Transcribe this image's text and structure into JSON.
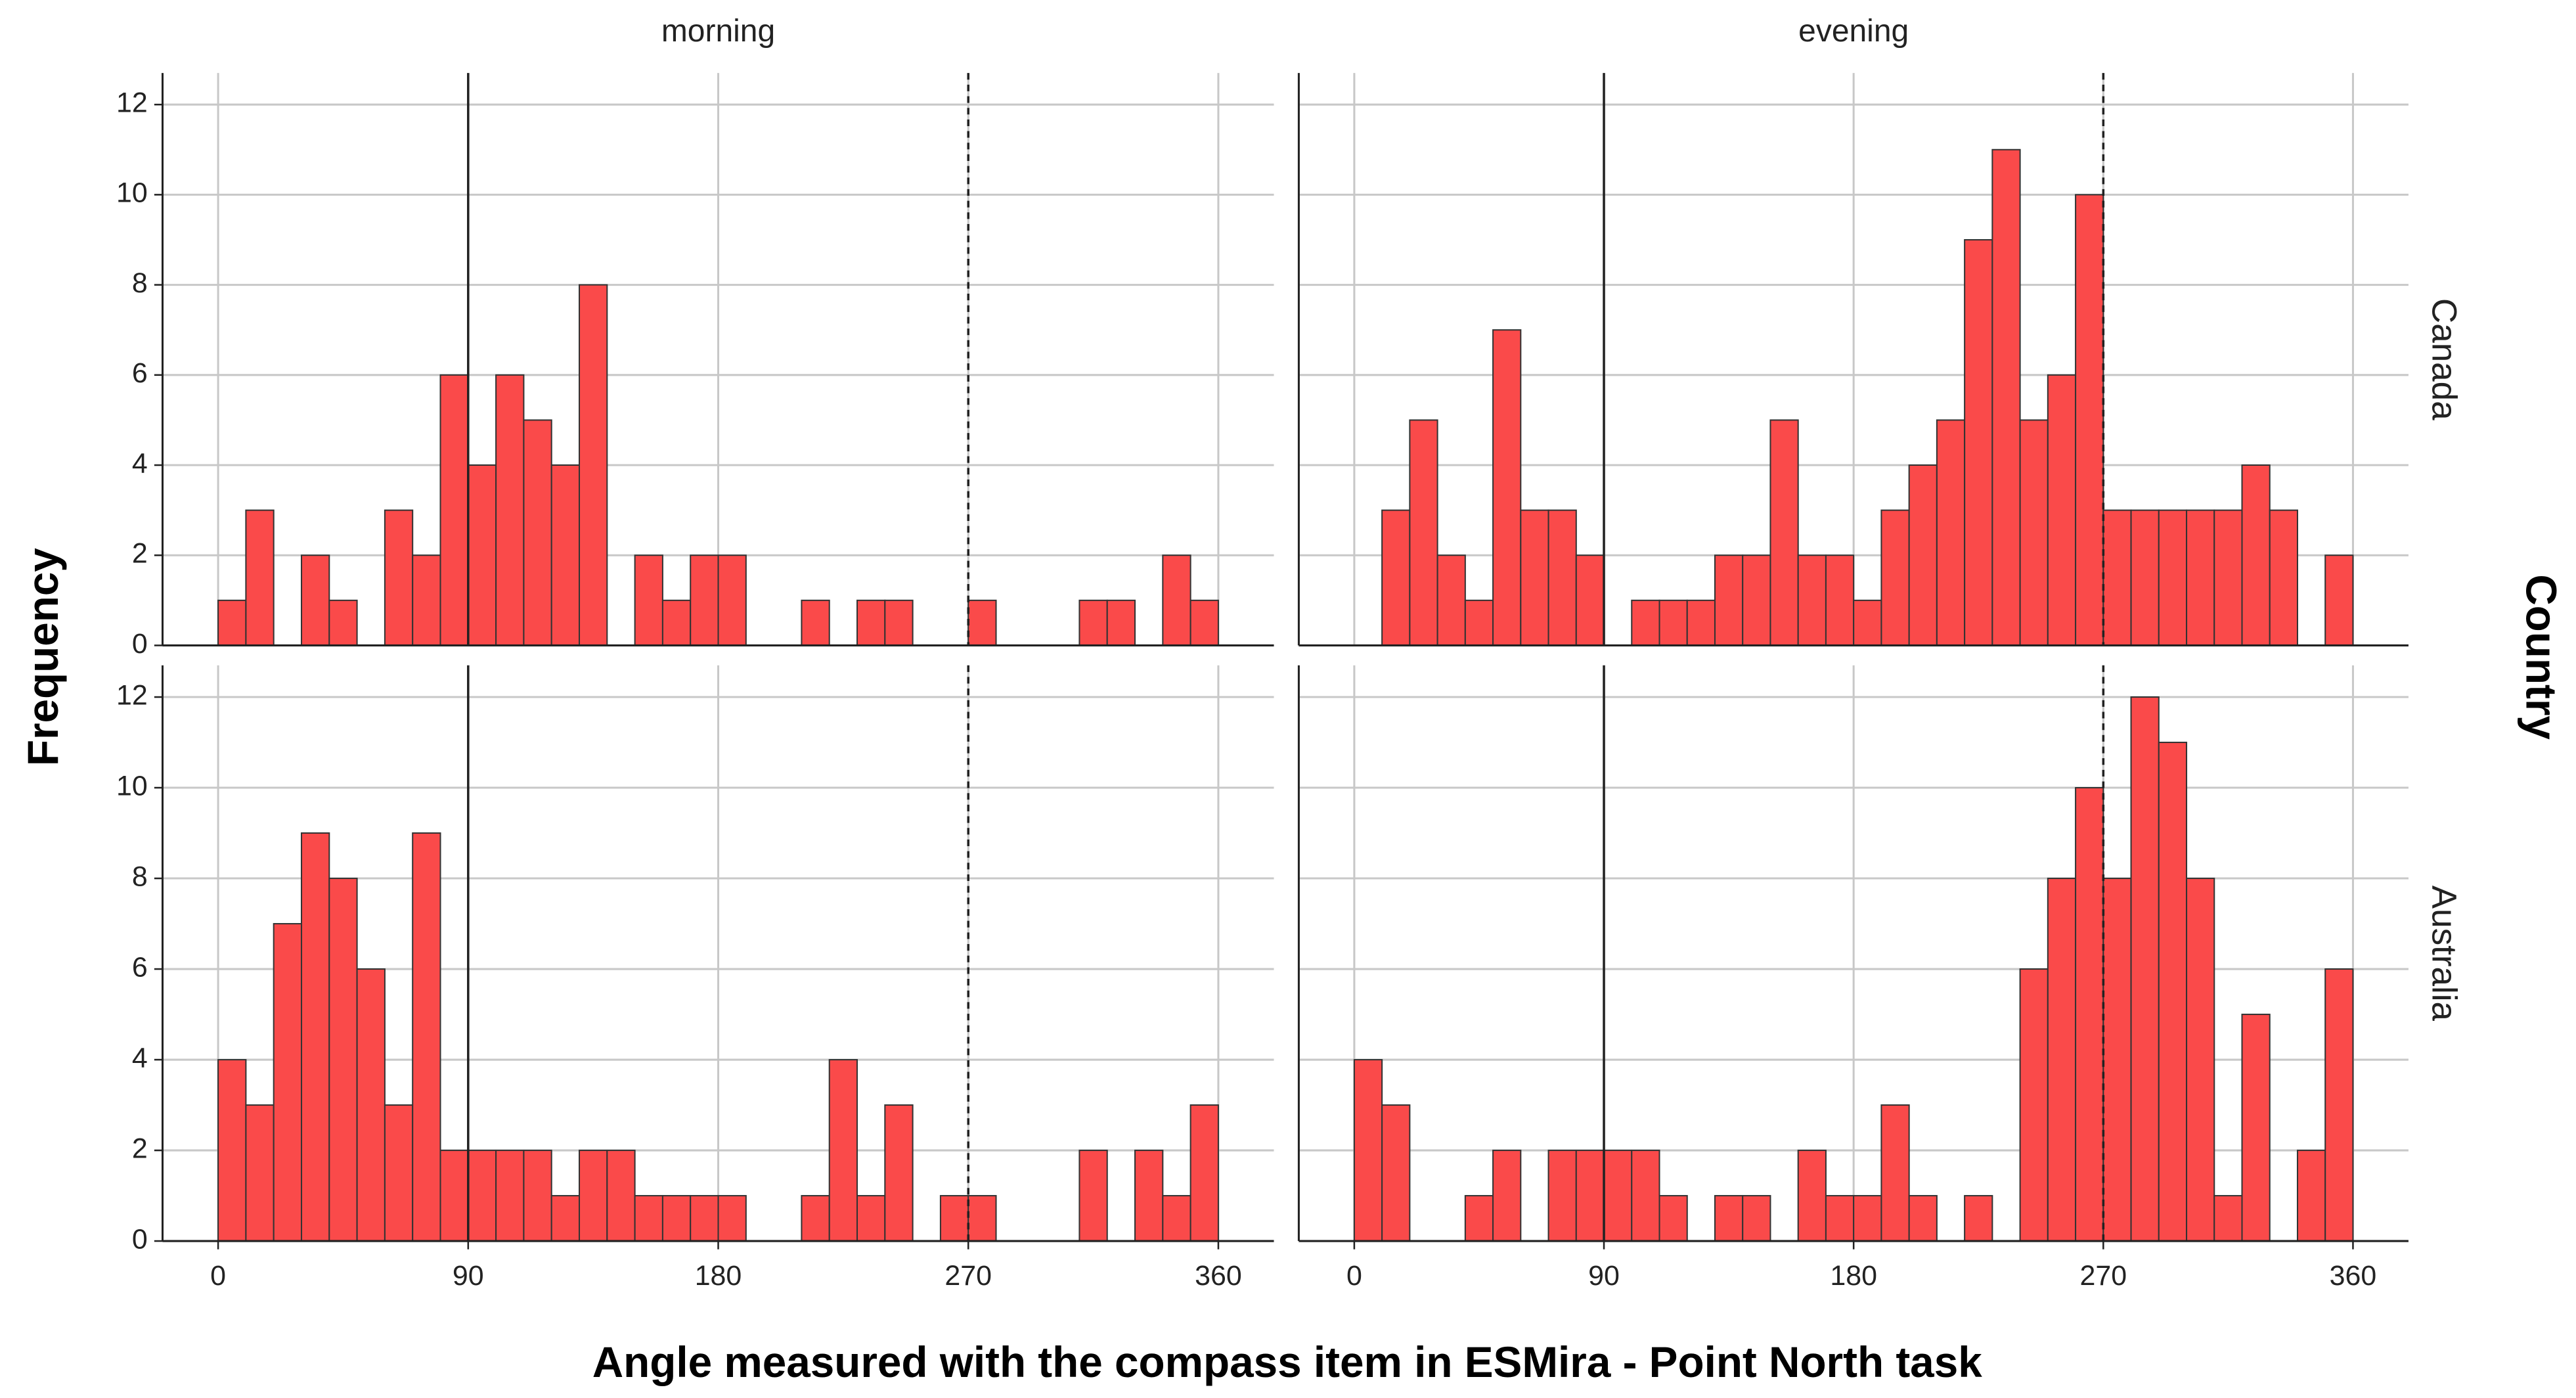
{
  "chart_data": {
    "type": "histogram",
    "xlabel": "Angle measured with the compass item in ESMira - Point North task",
    "ylabel": "Frequency",
    "row_facet_label": "Country",
    "columns": [
      "morning",
      "evening"
    ],
    "rows": [
      "Canada",
      "Australia"
    ],
    "bins": [
      0,
      10,
      20,
      30,
      40,
      50,
      60,
      70,
      80,
      90,
      100,
      110,
      120,
      130,
      140,
      150,
      160,
      170,
      180,
      190,
      200,
      210,
      220,
      230,
      240,
      250,
      260,
      270,
      280,
      290,
      300,
      310,
      320,
      330,
      340,
      350,
      360
    ],
    "panels": [
      [
        {
          "values": [
            1,
            3,
            0,
            2,
            1,
            0,
            3,
            2,
            6,
            4,
            6,
            5,
            4,
            8,
            0,
            2,
            1,
            2,
            2,
            0,
            0,
            1,
            0,
            1,
            1,
            0,
            0,
            1,
            0,
            0,
            0,
            1,
            1,
            0,
            2,
            1
          ]
        },
        {
          "values": [
            0,
            3,
            5,
            2,
            1,
            7,
            3,
            3,
            2,
            0,
            1,
            1,
            1,
            2,
            2,
            5,
            2,
            2,
            1,
            3,
            4,
            5,
            9,
            11,
            5,
            6,
            10,
            3,
            3,
            3,
            3,
            3,
            4,
            3,
            0,
            2
          ]
        }
      ],
      [
        {
          "values": [
            4,
            3,
            7,
            9,
            8,
            6,
            3,
            9,
            2,
            2,
            2,
            2,
            1,
            2,
            2,
            1,
            1,
            1,
            1,
            0,
            0,
            1,
            4,
            1,
            3,
            0,
            1,
            1,
            0,
            0,
            0,
            2,
            0,
            2,
            1,
            3
          ]
        },
        {
          "values": [
            4,
            3,
            0,
            0,
            1,
            2,
            0,
            2,
            2,
            2,
            2,
            1,
            0,
            1,
            1,
            0,
            2,
            1,
            1,
            3,
            1,
            0,
            1,
            0,
            6,
            8,
            10,
            8,
            12,
            11,
            8,
            1,
            5,
            0,
            2,
            6
          ]
        }
      ]
    ],
    "color": "#fa4a4a",
    "edge_color": "#333333",
    "reference_lines": [
      {
        "value": 90,
        "style": "solid"
      },
      {
        "value": 270,
        "style": "dashed"
      }
    ],
    "xlim": [
      -20,
      380
    ],
    "xticks": [
      0,
      90,
      180,
      270,
      360
    ],
    "ylim": [
      0,
      12.7
    ],
    "yticks": [
      0,
      2,
      4,
      6,
      8,
      10,
      12
    ],
    "grid": true
  }
}
